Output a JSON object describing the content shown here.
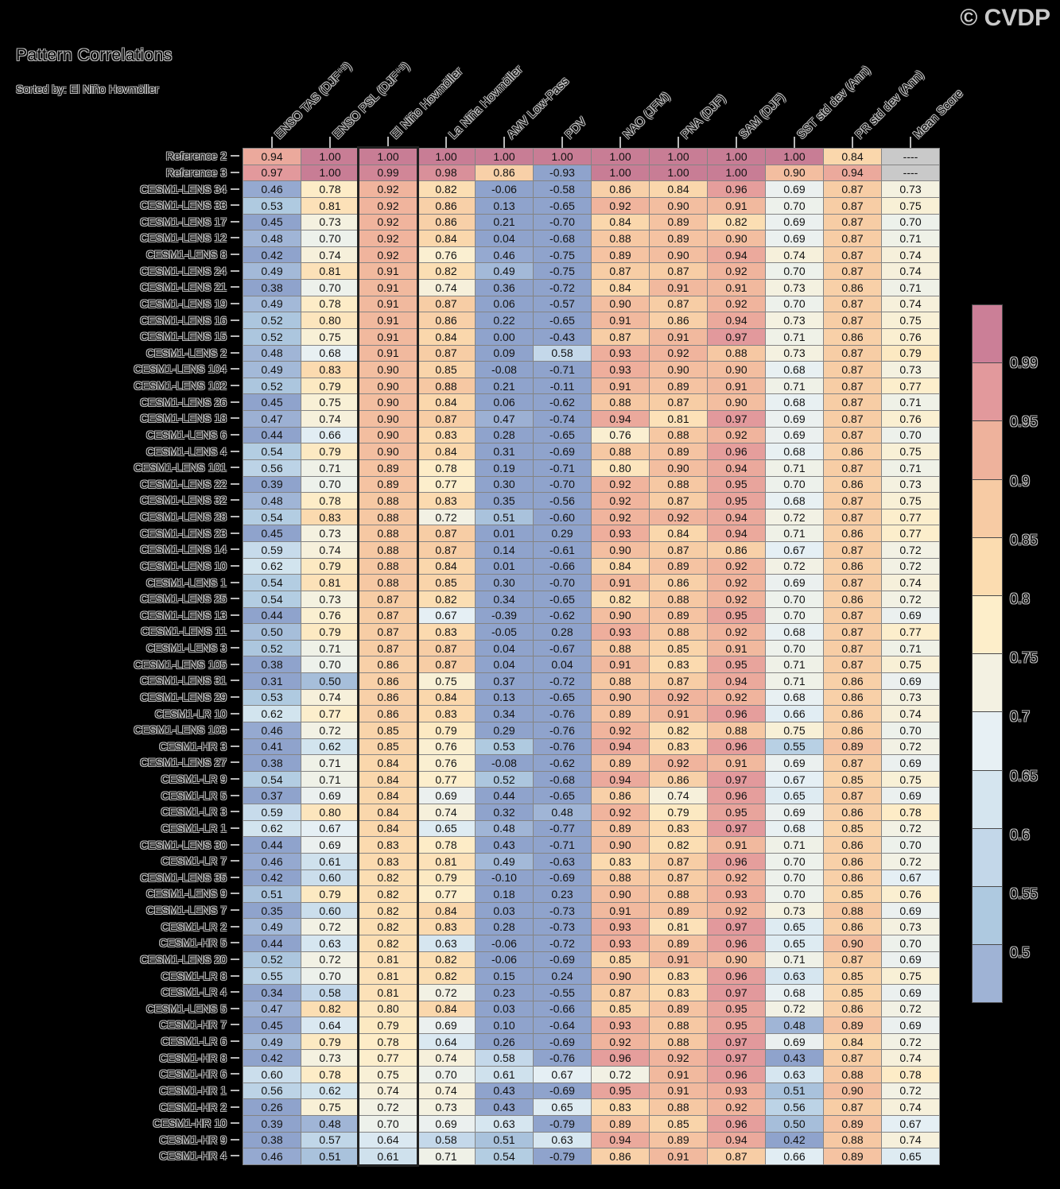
{
  "title": "Pattern Correlations",
  "subtitle": "Sorted by: El Niño Hovmöller",
  "copyright": "© CVDP",
  "chart_data": {
    "type": "heatmap",
    "title": "Pattern Correlations",
    "sorted_by": "El Niño Hovmöller",
    "highlighted_column": "El Niño Hovmöller",
    "highlighted_column_index": 2,
    "columns": [
      "ENSO TAS (DJF⁺¹)",
      "ENSO PSL (DJF⁺¹)",
      "El Niño Hovmöller",
      "La Niña Hovmöller",
      "AMV Low-Pass",
      "PDV",
      "NAO (JFM)",
      "PNA (DJF)",
      "SAM (DJF)",
      "SST std dev (Ann)",
      "PR std dev (Ann)",
      "Mean Score"
    ],
    "rows": [
      {
        "name": "Reference 2",
        "values": [
          0.94,
          1.0,
          1.0,
          1.0,
          1.0,
          1.0,
          1.0,
          1.0,
          1.0,
          1.0,
          0.84,
          "----"
        ]
      },
      {
        "name": "Reference 3",
        "values": [
          0.97,
          1.0,
          0.99,
          0.98,
          0.86,
          -0.93,
          1.0,
          1.0,
          1.0,
          0.9,
          0.94,
          "----"
        ]
      },
      {
        "name": "CESM1-LENS 34",
        "values": [
          0.46,
          0.78,
          0.92,
          0.82,
          -0.06,
          -0.58,
          0.86,
          0.84,
          0.96,
          0.69,
          0.87,
          0.73
        ]
      },
      {
        "name": "CESM1-LENS 33",
        "values": [
          0.53,
          0.81,
          0.92,
          0.86,
          0.13,
          -0.65,
          0.92,
          0.9,
          0.91,
          0.7,
          0.87,
          0.75
        ]
      },
      {
        "name": "CESM1-LENS 17",
        "values": [
          0.45,
          0.73,
          0.92,
          0.86,
          0.21,
          -0.7,
          0.84,
          0.89,
          0.82,
          0.69,
          0.87,
          0.7
        ]
      },
      {
        "name": "CESM1-LENS 12",
        "values": [
          0.48,
          0.7,
          0.92,
          0.84,
          0.04,
          -0.68,
          0.88,
          0.89,
          0.9,
          0.69,
          0.87,
          0.71
        ]
      },
      {
        "name": "CESM1-LENS 8",
        "values": [
          0.42,
          0.74,
          0.92,
          0.76,
          0.46,
          -0.75,
          0.89,
          0.9,
          0.94,
          0.74,
          0.87,
          0.74
        ]
      },
      {
        "name": "CESM1-LENS 24",
        "values": [
          0.49,
          0.81,
          0.91,
          0.82,
          0.49,
          -0.75,
          0.87,
          0.87,
          0.92,
          0.7,
          0.87,
          0.74
        ]
      },
      {
        "name": "CESM1-LENS 21",
        "values": [
          0.38,
          0.7,
          0.91,
          0.74,
          0.36,
          -0.72,
          0.84,
          0.91,
          0.91,
          0.73,
          0.86,
          0.71
        ]
      },
      {
        "name": "CESM1-LENS 19",
        "values": [
          0.49,
          0.78,
          0.91,
          0.87,
          0.06,
          -0.57,
          0.9,
          0.87,
          0.92,
          0.7,
          0.87,
          0.74
        ]
      },
      {
        "name": "CESM1-LENS 16",
        "values": [
          0.52,
          0.8,
          0.91,
          0.86,
          0.22,
          -0.65,
          0.91,
          0.86,
          0.94,
          0.73,
          0.87,
          0.75
        ]
      },
      {
        "name": "CESM1-LENS 15",
        "values": [
          0.52,
          0.75,
          0.91,
          0.84,
          0.0,
          -0.43,
          0.87,
          0.91,
          0.97,
          0.71,
          0.86,
          0.76
        ]
      },
      {
        "name": "CESM1-LENS 2",
        "values": [
          0.48,
          0.68,
          0.91,
          0.87,
          0.09,
          0.58,
          0.93,
          0.92,
          0.88,
          0.73,
          0.87,
          0.79
        ]
      },
      {
        "name": "CESM1-LENS 104",
        "values": [
          0.49,
          0.83,
          0.9,
          0.85,
          -0.08,
          -0.71,
          0.93,
          0.9,
          0.9,
          0.68,
          0.87,
          0.73
        ]
      },
      {
        "name": "CESM1-LENS 102",
        "values": [
          0.52,
          0.79,
          0.9,
          0.88,
          0.21,
          -0.11,
          0.91,
          0.89,
          0.91,
          0.71,
          0.87,
          0.77
        ]
      },
      {
        "name": "CESM1-LENS 26",
        "values": [
          0.45,
          0.75,
          0.9,
          0.84,
          0.06,
          -0.62,
          0.88,
          0.87,
          0.9,
          0.68,
          0.87,
          0.71
        ]
      },
      {
        "name": "CESM1-LENS 18",
        "values": [
          0.47,
          0.74,
          0.9,
          0.87,
          0.47,
          -0.74,
          0.94,
          0.81,
          0.97,
          0.69,
          0.87,
          0.76
        ]
      },
      {
        "name": "CESM1-LENS 6",
        "values": [
          0.44,
          0.66,
          0.9,
          0.83,
          0.28,
          -0.65,
          0.76,
          0.88,
          0.92,
          0.69,
          0.87,
          0.7
        ]
      },
      {
        "name": "CESM1-LENS 4",
        "values": [
          0.54,
          0.79,
          0.9,
          0.84,
          0.31,
          -0.69,
          0.88,
          0.89,
          0.96,
          0.68,
          0.86,
          0.75
        ]
      },
      {
        "name": "CESM1-LENS 101",
        "values": [
          0.56,
          0.71,
          0.89,
          0.78,
          0.19,
          -0.71,
          0.8,
          0.9,
          0.94,
          0.71,
          0.87,
          0.71
        ]
      },
      {
        "name": "CESM1-LENS 22",
        "values": [
          0.39,
          0.7,
          0.89,
          0.77,
          0.3,
          -0.7,
          0.92,
          0.88,
          0.95,
          0.7,
          0.86,
          0.73
        ]
      },
      {
        "name": "CESM1-LENS 32",
        "values": [
          0.48,
          0.78,
          0.88,
          0.83,
          0.35,
          -0.56,
          0.92,
          0.87,
          0.95,
          0.68,
          0.87,
          0.75
        ]
      },
      {
        "name": "CESM1-LENS 28",
        "values": [
          0.54,
          0.83,
          0.88,
          0.72,
          0.51,
          -0.6,
          0.92,
          0.92,
          0.94,
          0.72,
          0.87,
          0.77
        ]
      },
      {
        "name": "CESM1-LENS 23",
        "values": [
          0.45,
          0.73,
          0.88,
          0.87,
          0.01,
          0.29,
          0.93,
          0.84,
          0.94,
          0.71,
          0.86,
          0.77
        ]
      },
      {
        "name": "CESM1-LENS 14",
        "values": [
          0.59,
          0.74,
          0.88,
          0.87,
          0.14,
          -0.61,
          0.9,
          0.87,
          0.86,
          0.67,
          0.87,
          0.72
        ]
      },
      {
        "name": "CESM1-LENS 10",
        "values": [
          0.62,
          0.79,
          0.88,
          0.84,
          0.01,
          -0.66,
          0.84,
          0.89,
          0.92,
          0.72,
          0.86,
          0.72
        ]
      },
      {
        "name": "CESM1-LENS 1",
        "values": [
          0.54,
          0.81,
          0.88,
          0.85,
          0.3,
          -0.7,
          0.91,
          0.86,
          0.92,
          0.69,
          0.87,
          0.74
        ]
      },
      {
        "name": "CESM1-LENS 25",
        "values": [
          0.54,
          0.73,
          0.87,
          0.82,
          0.34,
          -0.65,
          0.82,
          0.88,
          0.92,
          0.7,
          0.86,
          0.72
        ]
      },
      {
        "name": "CESM1-LENS 13",
        "values": [
          0.44,
          0.76,
          0.87,
          0.67,
          -0.39,
          -0.62,
          0.9,
          0.89,
          0.95,
          0.7,
          0.87,
          0.69
        ]
      },
      {
        "name": "CESM1-LENS 11",
        "values": [
          0.5,
          0.79,
          0.87,
          0.83,
          -0.05,
          0.28,
          0.93,
          0.88,
          0.92,
          0.68,
          0.87,
          0.77
        ]
      },
      {
        "name": "CESM1-LENS 3",
        "values": [
          0.52,
          0.71,
          0.87,
          0.87,
          0.04,
          -0.67,
          0.88,
          0.85,
          0.91,
          0.7,
          0.87,
          0.71
        ]
      },
      {
        "name": "CESM1-LENS 105",
        "values": [
          0.38,
          0.7,
          0.86,
          0.87,
          0.04,
          0.04,
          0.91,
          0.83,
          0.95,
          0.71,
          0.87,
          0.75
        ]
      },
      {
        "name": "CESM1-LENS 31",
        "values": [
          0.31,
          0.5,
          0.86,
          0.75,
          0.37,
          -0.72,
          0.88,
          0.87,
          0.94,
          0.71,
          0.86,
          0.69
        ]
      },
      {
        "name": "CESM1-LENS 29",
        "values": [
          0.53,
          0.74,
          0.86,
          0.84,
          0.13,
          -0.65,
          0.9,
          0.92,
          0.92,
          0.68,
          0.86,
          0.73
        ]
      },
      {
        "name": "CESM1-LR 10",
        "values": [
          0.62,
          0.77,
          0.86,
          0.83,
          0.34,
          -0.76,
          0.89,
          0.91,
          0.96,
          0.66,
          0.86,
          0.74
        ]
      },
      {
        "name": "CESM1-LENS 103",
        "values": [
          0.46,
          0.72,
          0.85,
          0.79,
          0.29,
          -0.76,
          0.92,
          0.82,
          0.88,
          0.75,
          0.86,
          0.7
        ]
      },
      {
        "name": "CESM1-HR 3",
        "values": [
          0.41,
          0.62,
          0.85,
          0.76,
          0.53,
          -0.76,
          0.94,
          0.83,
          0.96,
          0.55,
          0.89,
          0.72
        ]
      },
      {
        "name": "CESM1-LENS 27",
        "values": [
          0.38,
          0.71,
          0.84,
          0.76,
          -0.08,
          -0.62,
          0.89,
          0.92,
          0.91,
          0.69,
          0.87,
          0.69
        ]
      },
      {
        "name": "CESM1-LR 9",
        "values": [
          0.54,
          0.71,
          0.84,
          0.77,
          0.52,
          -0.68,
          0.94,
          0.86,
          0.97,
          0.67,
          0.85,
          0.75
        ]
      },
      {
        "name": "CESM1-LR 5",
        "values": [
          0.37,
          0.69,
          0.84,
          0.69,
          0.44,
          -0.65,
          0.86,
          0.74,
          0.96,
          0.65,
          0.87,
          0.69
        ]
      },
      {
        "name": "CESM1-LR 3",
        "values": [
          0.59,
          0.8,
          0.84,
          0.74,
          0.32,
          0.48,
          0.92,
          0.79,
          0.95,
          0.69,
          0.86,
          0.78
        ]
      },
      {
        "name": "CESM1-LR 1",
        "values": [
          0.62,
          0.67,
          0.84,
          0.65,
          0.48,
          -0.77,
          0.89,
          0.83,
          0.97,
          0.68,
          0.85,
          0.72
        ]
      },
      {
        "name": "CESM1-LENS 30",
        "values": [
          0.44,
          0.69,
          0.83,
          0.78,
          0.43,
          -0.71,
          0.9,
          0.82,
          0.91,
          0.71,
          0.86,
          0.7
        ]
      },
      {
        "name": "CESM1-LR 7",
        "values": [
          0.46,
          0.61,
          0.83,
          0.81,
          0.49,
          -0.63,
          0.83,
          0.87,
          0.96,
          0.7,
          0.86,
          0.72
        ]
      },
      {
        "name": "CESM1-LENS 35",
        "values": [
          0.42,
          0.6,
          0.82,
          0.79,
          -0.1,
          -0.69,
          0.88,
          0.87,
          0.92,
          0.7,
          0.86,
          0.67
        ]
      },
      {
        "name": "CESM1-LENS 9",
        "values": [
          0.51,
          0.79,
          0.82,
          0.77,
          0.18,
          0.23,
          0.9,
          0.88,
          0.93,
          0.7,
          0.85,
          0.76
        ]
      },
      {
        "name": "CESM1-LENS 7",
        "values": [
          0.35,
          0.6,
          0.82,
          0.84,
          0.03,
          -0.73,
          0.91,
          0.89,
          0.92,
          0.73,
          0.88,
          0.69
        ]
      },
      {
        "name": "CESM1-LR 2",
        "values": [
          0.49,
          0.72,
          0.82,
          0.83,
          0.28,
          -0.73,
          0.93,
          0.81,
          0.97,
          0.65,
          0.86,
          0.73
        ]
      },
      {
        "name": "CESM1-HR 5",
        "values": [
          0.44,
          0.63,
          0.82,
          0.63,
          -0.06,
          -0.72,
          0.93,
          0.89,
          0.96,
          0.65,
          0.9,
          0.7
        ]
      },
      {
        "name": "CESM1-LENS 20",
        "values": [
          0.52,
          0.72,
          0.81,
          0.82,
          -0.06,
          -0.69,
          0.85,
          0.91,
          0.9,
          0.71,
          0.87,
          0.69
        ]
      },
      {
        "name": "CESM1-LR 8",
        "values": [
          0.55,
          0.7,
          0.81,
          0.82,
          0.15,
          0.24,
          0.9,
          0.83,
          0.96,
          0.63,
          0.85,
          0.75
        ]
      },
      {
        "name": "CESM1-LR 4",
        "values": [
          0.34,
          0.58,
          0.81,
          0.72,
          0.23,
          -0.55,
          0.87,
          0.83,
          0.97,
          0.68,
          0.85,
          0.69
        ]
      },
      {
        "name": "CESM1-LENS 5",
        "values": [
          0.47,
          0.82,
          0.8,
          0.84,
          0.03,
          -0.66,
          0.85,
          0.89,
          0.95,
          0.72,
          0.86,
          0.72
        ]
      },
      {
        "name": "CESM1-HR 7",
        "values": [
          0.45,
          0.64,
          0.79,
          0.69,
          0.1,
          -0.64,
          0.93,
          0.88,
          0.95,
          0.48,
          0.89,
          0.69
        ]
      },
      {
        "name": "CESM1-LR 6",
        "values": [
          0.49,
          0.79,
          0.78,
          0.64,
          0.26,
          -0.69,
          0.92,
          0.88,
          0.97,
          0.69,
          0.84,
          0.72
        ]
      },
      {
        "name": "CESM1-HR 8",
        "values": [
          0.42,
          0.73,
          0.77,
          0.74,
          0.58,
          -0.76,
          0.96,
          0.92,
          0.97,
          0.43,
          0.87,
          0.74
        ]
      },
      {
        "name": "CESM1-HR 6",
        "values": [
          0.6,
          0.78,
          0.75,
          0.7,
          0.61,
          0.67,
          0.72,
          0.91,
          0.96,
          0.63,
          0.88,
          0.78
        ]
      },
      {
        "name": "CESM1-HR 1",
        "values": [
          0.56,
          0.62,
          0.74,
          0.74,
          0.43,
          -0.69,
          0.95,
          0.91,
          0.93,
          0.51,
          0.9,
          0.72
        ]
      },
      {
        "name": "CESM1-HR 2",
        "values": [
          0.26,
          0.75,
          0.72,
          0.73,
          0.43,
          0.65,
          0.83,
          0.88,
          0.92,
          0.56,
          0.87,
          0.74
        ]
      },
      {
        "name": "CESM1-HR 10",
        "values": [
          0.39,
          0.48,
          0.7,
          0.69,
          0.63,
          -0.79,
          0.89,
          0.85,
          0.96,
          0.5,
          0.89,
          0.67
        ]
      },
      {
        "name": "CESM1-HR 9",
        "values": [
          0.38,
          0.57,
          0.64,
          0.58,
          0.51,
          0.63,
          0.94,
          0.89,
          0.94,
          0.42,
          0.88,
          0.74
        ]
      },
      {
        "name": "CESM1-HR 4",
        "values": [
          0.46,
          0.51,
          0.61,
          0.71,
          0.54,
          -0.79,
          0.86,
          0.91,
          0.87,
          0.66,
          0.89,
          0.65
        ]
      }
    ],
    "missing": {
      "text": "----",
      "color": "#c9c9c9"
    },
    "colormap": [
      {
        "v": 0.45,
        "c": "#8fa3cc"
      },
      {
        "v": 0.475,
        "c": "#9fb3d5"
      },
      {
        "v": 0.525,
        "c": "#adc8df"
      },
      {
        "v": 0.575,
        "c": "#c2d7e9"
      },
      {
        "v": 0.625,
        "c": "#d4e5ef"
      },
      {
        "v": 0.675,
        "c": "#e7f0f4"
      },
      {
        "v": 0.725,
        "c": "#f3f1e2"
      },
      {
        "v": 0.775,
        "c": "#fdeeca"
      },
      {
        "v": 0.825,
        "c": "#fbdcb0"
      },
      {
        "v": 0.875,
        "c": "#f7cba4"
      },
      {
        "v": 0.925,
        "c": "#efb19c"
      },
      {
        "v": 0.97,
        "c": "#e2999c"
      },
      {
        "v": 1.0,
        "c": "#c87d95"
      }
    ],
    "legend": {
      "position": "right",
      "labels": [
        "0.99",
        "0.95",
        "0.9",
        "0.85",
        "0.8",
        "0.75",
        "0.7",
        "0.65",
        "0.6",
        "0.55",
        "0.5"
      ],
      "block_colors": [
        "#cb7f97",
        "#e2999c",
        "#eeb29c",
        "#f7cba4",
        "#fbdcb0",
        "#fdeeca",
        "#f3f1e2",
        "#e7f0f4",
        "#d5e5ef",
        "#c3d7e9",
        "#aec9e0",
        "#9fb3d5"
      ]
    }
  }
}
